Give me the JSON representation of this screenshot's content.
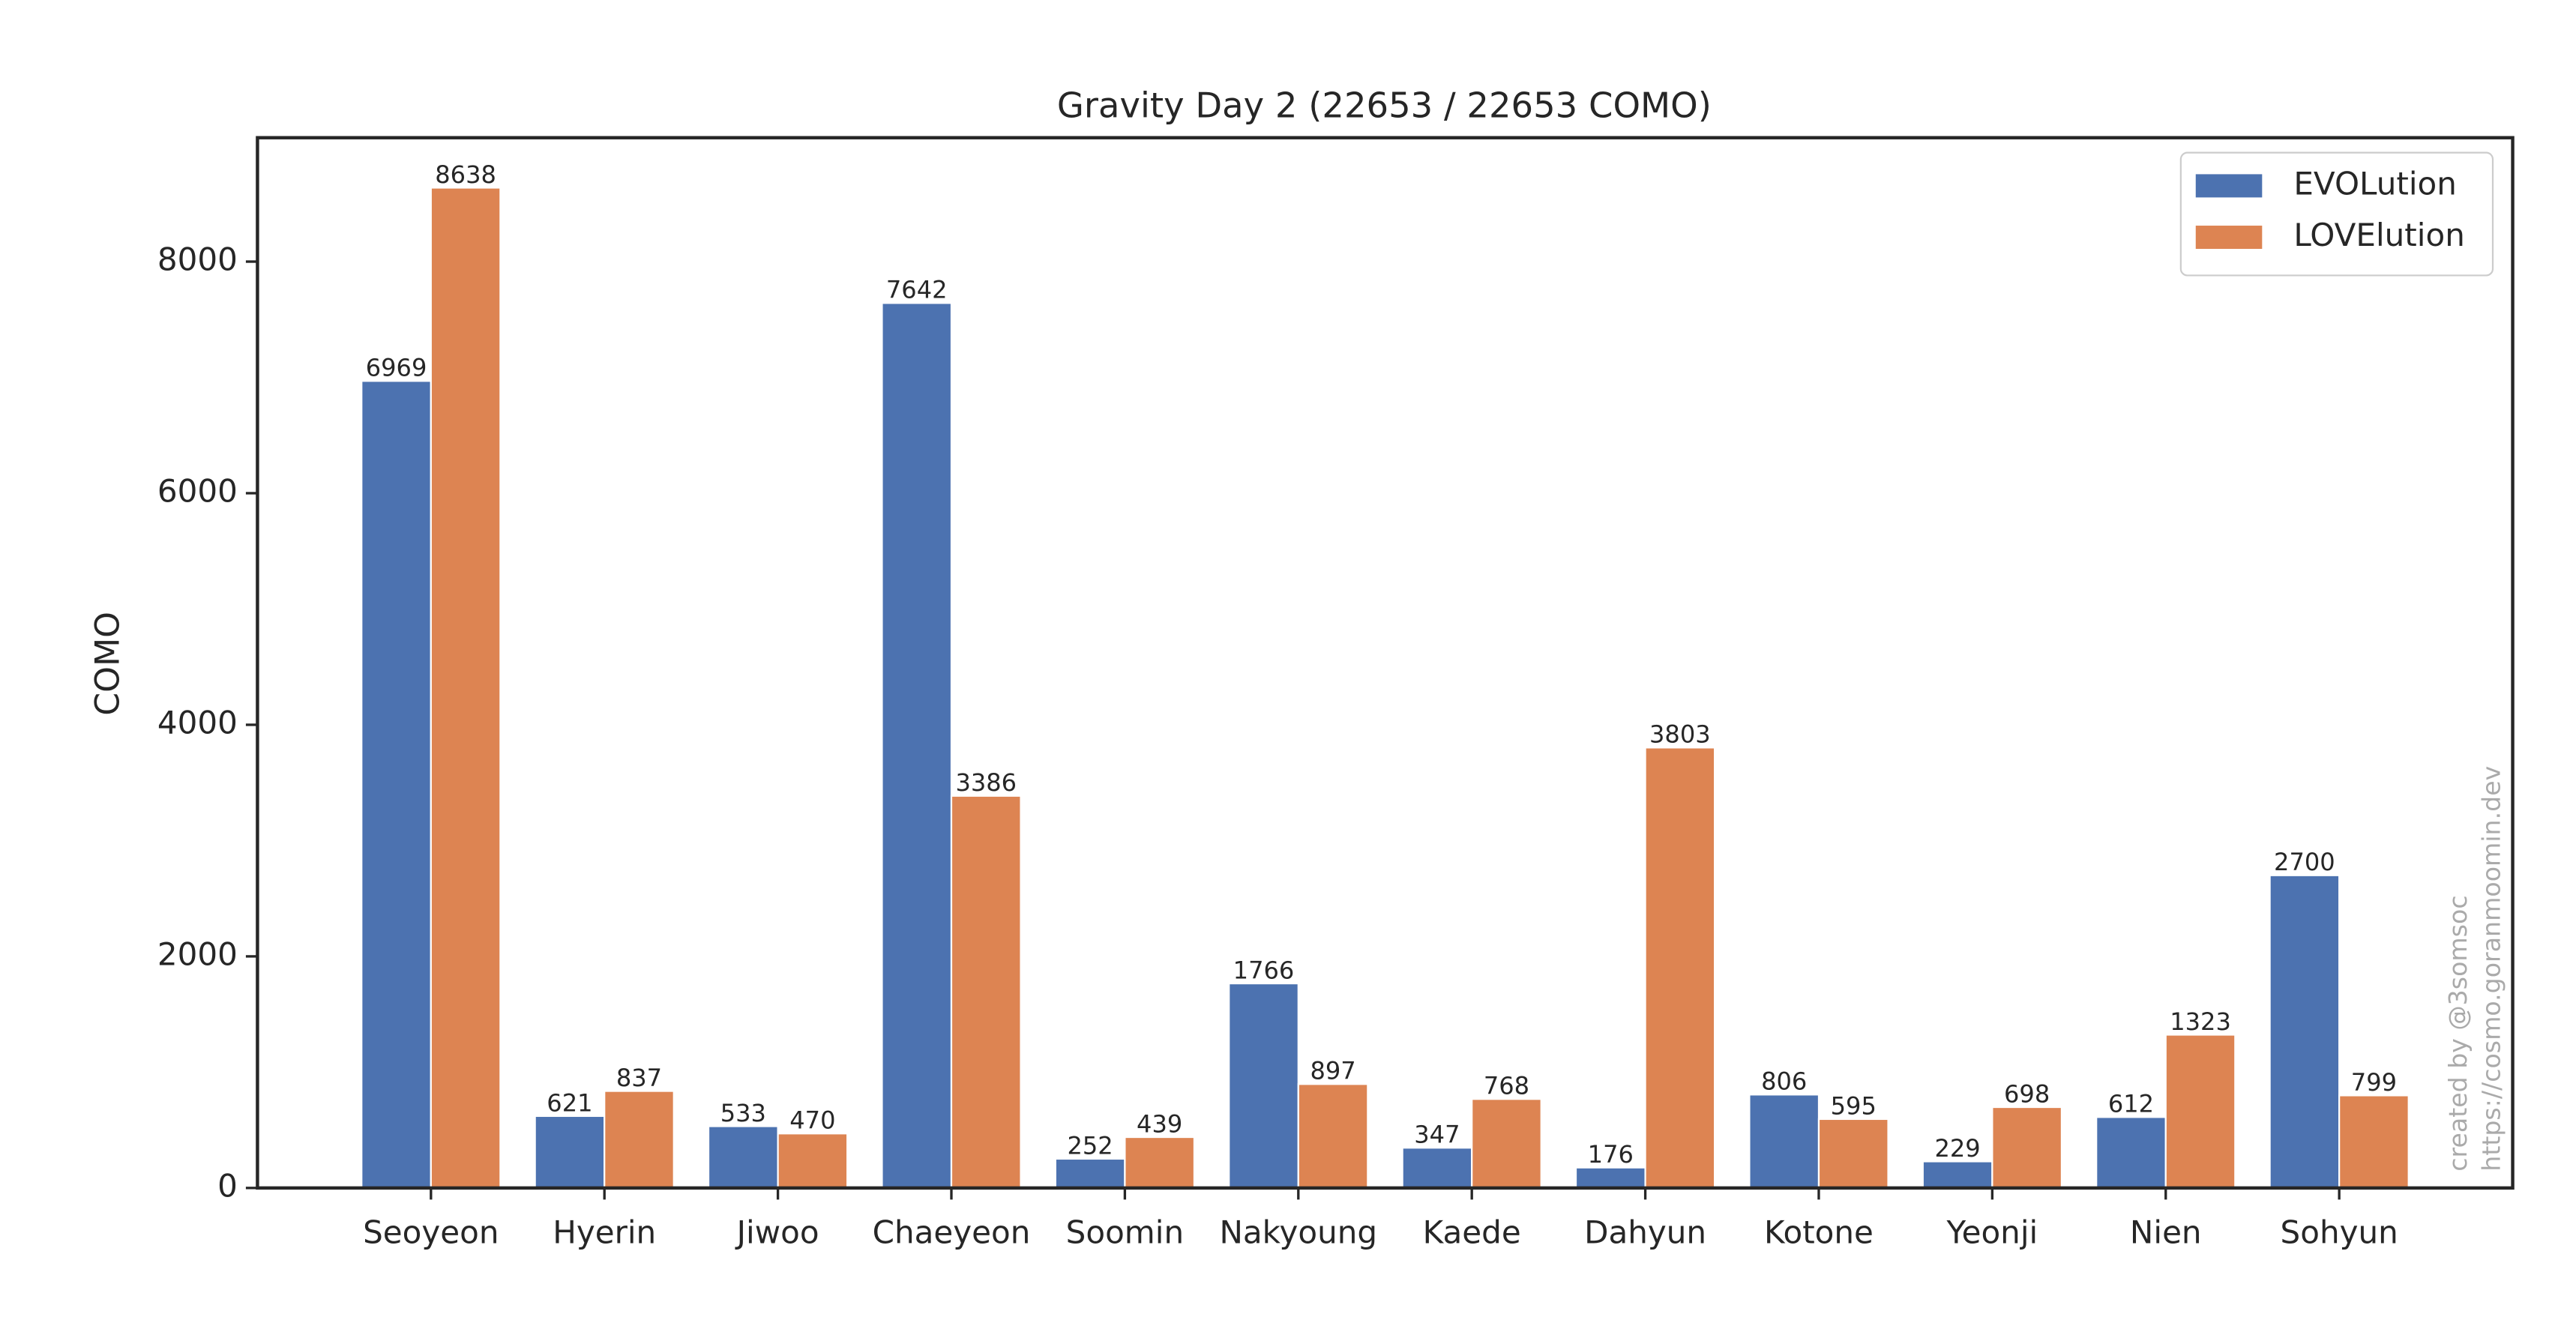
{
  "chart_data": {
    "type": "bar",
    "title": "Gravity Day 2 (22653 / 22653 COMO)",
    "ylabel": "COMO",
    "categories": [
      "Seoyeon",
      "Hyerin",
      "Jiwoo",
      "Chaeyeon",
      "Soomin",
      "Nakyoung",
      "Kaede",
      "Dahyun",
      "Kotone",
      "Yeonji",
      "Nien",
      "Sohyun"
    ],
    "series": [
      {
        "name": "EVOLution",
        "color": "#4c72b0",
        "values": [
          6969,
          621,
          533,
          7642,
          252,
          1766,
          347,
          176,
          806,
          229,
          612,
          2700
        ]
      },
      {
        "name": "LOVElution",
        "color": "#dd8452",
        "values": [
          8638,
          837,
          470,
          3386,
          439,
          897,
          768,
          3803,
          595,
          698,
          1323,
          799
        ]
      }
    ],
    "ylim": [
      0,
      9070
    ],
    "yticks": [
      0,
      2000,
      4000,
      6000,
      8000
    ],
    "grid": false,
    "legend": "upper right",
    "annotations": [
      "created by @3somsoc",
      "https://cosmo.goranmoomin.dev"
    ]
  }
}
